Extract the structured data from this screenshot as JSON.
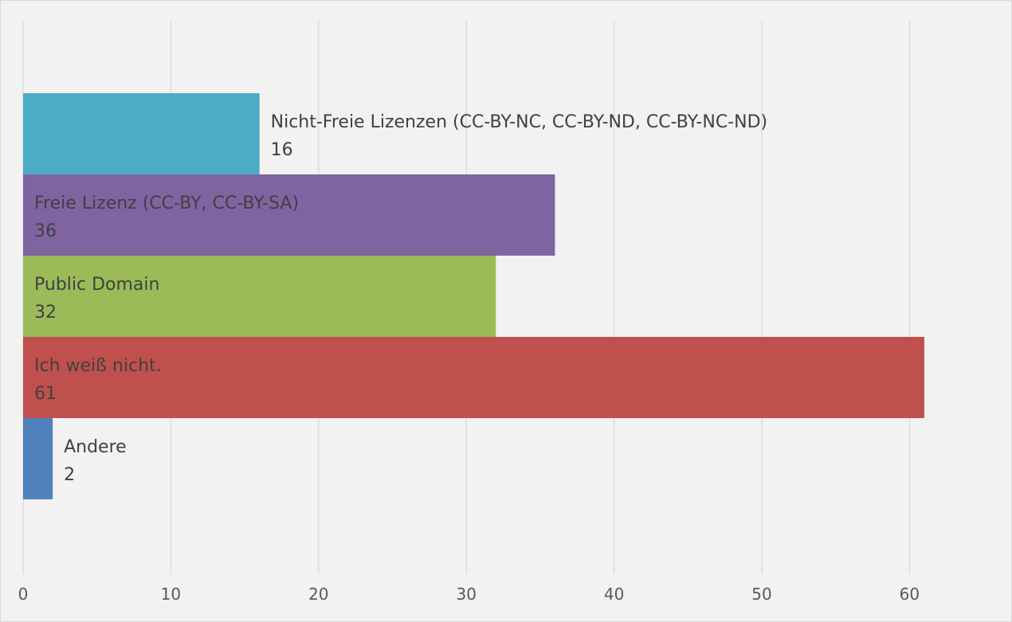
{
  "chart_data": {
    "type": "bar",
    "orientation": "horizontal",
    "title": "",
    "xlabel": "",
    "ylabel": "",
    "xlim": [
      0,
      66.5
    ],
    "x_ticks": [
      0,
      10,
      20,
      30,
      40,
      50,
      60
    ],
    "grid": true,
    "legend": "none",
    "bars": [
      {
        "label": "Nicht-Freie Lizenzen (CC-BY-NC, CC-BY-ND, CC-BY-NC-ND)",
        "value": 16,
        "value_label": "16",
        "color": "#4bacc6"
      },
      {
        "label": "Freie Lizenz (CC-BY, CC-BY-SA)",
        "value": 36,
        "value_label": "36",
        "color": "#8064a2"
      },
      {
        "label": "Public Domain",
        "value": 32,
        "value_label": "32",
        "color": "#9bbb59"
      },
      {
        "label": "Ich weiß nicht.",
        "value": 61,
        "value_label": "61",
        "color": "#c0504d"
      },
      {
        "label": "Andere",
        "value": 2,
        "value_label": "2",
        "color": "#4f81bd"
      }
    ],
    "background_color": "#f2f2f2",
    "grid_color": "#d9d9d9",
    "text_color": "#404040"
  }
}
